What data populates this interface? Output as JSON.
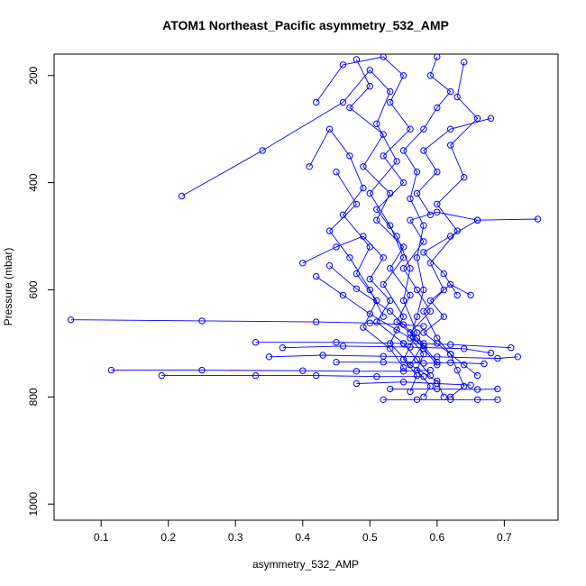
{
  "chart_data": {
    "type": "line",
    "title": "ATOM1 Northeast_Pacific asymmetry_532_AMP",
    "xlabel": "asymmetry_532_AMP",
    "ylabel": "Pressure (mbar)",
    "xlim": [
      0.03,
      0.78
    ],
    "ylim": [
      1030,
      160
    ],
    "y_reversed": true,
    "x_ticks": [
      0.1,
      0.2,
      0.3,
      0.4,
      0.5,
      0.6,
      0.7
    ],
    "y_ticks": [
      200,
      400,
      600,
      800,
      1000
    ],
    "grid": false,
    "legend": "none",
    "marker": "open-circle",
    "color": "#0000ff",
    "series": [
      {
        "points": [
          [
            0.6,
            165
          ],
          [
            0.59,
            200
          ],
          [
            0.62,
            230
          ],
          [
            0.6,
            260
          ],
          [
            0.58,
            300
          ],
          [
            0.55,
            340
          ],
          [
            0.57,
            380
          ],
          [
            0.56,
            430
          ],
          [
            0.58,
            480
          ],
          [
            0.57,
            540
          ],
          [
            0.58,
            600
          ],
          [
            0.57,
            650
          ],
          [
            0.56,
            690
          ],
          [
            0.58,
            720
          ],
          [
            0.57,
            750
          ],
          [
            0.59,
            780
          ],
          [
            0.58,
            800
          ]
        ]
      },
      {
        "points": [
          [
            0.48,
            170
          ],
          [
            0.5,
            220
          ],
          [
            0.47,
            260
          ],
          [
            0.52,
            310
          ],
          [
            0.49,
            370
          ],
          [
            0.53,
            420
          ],
          [
            0.51,
            470
          ],
          [
            0.55,
            520
          ],
          [
            0.53,
            560
          ],
          [
            0.56,
            610
          ],
          [
            0.54,
            660
          ],
          [
            0.58,
            700
          ],
          [
            0.56,
            740
          ],
          [
            0.6,
            770
          ],
          [
            0.61,
            800
          ]
        ]
      },
      {
        "points": [
          [
            0.64,
            175
          ],
          [
            0.63,
            240
          ],
          [
            0.66,
            280
          ],
          [
            0.62,
            330
          ],
          [
            0.64,
            390
          ],
          [
            0.6,
            440
          ],
          [
            0.63,
            490
          ],
          [
            0.59,
            550
          ],
          [
            0.61,
            600
          ],
          [
            0.58,
            640
          ],
          [
            0.6,
            690
          ],
          [
            0.62,
            720
          ],
          [
            0.63,
            750
          ],
          [
            0.64,
            780
          ],
          [
            0.62,
            800
          ]
        ]
      },
      {
        "points": [
          [
            0.42,
            250
          ],
          [
            0.46,
            180
          ],
          [
            0.52,
            165
          ],
          [
            0.55,
            200
          ],
          [
            0.53,
            250
          ],
          [
            0.56,
            300
          ],
          [
            0.52,
            350
          ],
          [
            0.55,
            400
          ],
          [
            0.51,
            450
          ],
          [
            0.54,
            500
          ],
          [
            0.56,
            560
          ],
          [
            0.55,
            620
          ],
          [
            0.57,
            680
          ],
          [
            0.55,
            730
          ],
          [
            0.57,
            760
          ],
          [
            0.56,
            790
          ]
        ]
      },
      {
        "points": [
          [
            0.22,
            425
          ],
          [
            0.34,
            340
          ],
          [
            0.46,
            250
          ],
          [
            0.5,
            190
          ],
          [
            0.53,
            230
          ],
          [
            0.51,
            290
          ],
          [
            0.54,
            360
          ],
          [
            0.5,
            420
          ],
          [
            0.53,
            480
          ],
          [
            0.55,
            540
          ],
          [
            0.52,
            590
          ],
          [
            0.55,
            650
          ],
          [
            0.53,
            700
          ],
          [
            0.56,
            740
          ]
        ]
      },
      {
        "points": [
          [
            0.41,
            370
          ],
          [
            0.44,
            300
          ],
          [
            0.47,
            350
          ],
          [
            0.49,
            410
          ],
          [
            0.46,
            460
          ],
          [
            0.5,
            520
          ],
          [
            0.48,
            570
          ],
          [
            0.51,
            620
          ],
          [
            0.49,
            670
          ],
          [
            0.53,
            710
          ],
          [
            0.55,
            745
          ]
        ]
      },
      {
        "points": [
          [
            0.75,
            468
          ],
          [
            0.66,
            470
          ],
          [
            0.6,
            455
          ],
          [
            0.56,
            470
          ],
          [
            0.58,
            510
          ],
          [
            0.55,
            560
          ],
          [
            0.57,
            600
          ],
          [
            0.59,
            640
          ],
          [
            0.56,
            680
          ],
          [
            0.58,
            710
          ],
          [
            0.6,
            740
          ]
        ]
      },
      {
        "points": [
          [
            0.4,
            550
          ],
          [
            0.45,
            520
          ],
          [
            0.49,
            500
          ],
          [
            0.52,
            540
          ],
          [
            0.5,
            580
          ],
          [
            0.53,
            620
          ],
          [
            0.51,
            660
          ],
          [
            0.55,
            700
          ],
          [
            0.57,
            730
          ],
          [
            0.59,
            760
          ]
        ]
      },
      {
        "points": [
          [
            0.65,
            610
          ],
          [
            0.62,
            590
          ],
          [
            0.59,
            620
          ],
          [
            0.61,
            650
          ],
          [
            0.58,
            680
          ],
          [
            0.6,
            700
          ],
          [
            0.62,
            720
          ],
          [
            0.64,
            740
          ],
          [
            0.66,
            760
          ]
        ]
      },
      {
        "points": [
          [
            0.055,
            656
          ],
          [
            0.25,
            658
          ],
          [
            0.42,
            660
          ],
          [
            0.5,
            662
          ],
          [
            0.55,
            665
          ],
          [
            0.58,
            668
          ]
        ]
      },
      {
        "points": [
          [
            0.33,
            698
          ],
          [
            0.45,
            698
          ],
          [
            0.55,
            700
          ],
          [
            0.62,
            702
          ],
          [
            0.71,
            708
          ]
        ]
      },
      {
        "points": [
          [
            0.37,
            708
          ],
          [
            0.46,
            705
          ],
          [
            0.56,
            707
          ],
          [
            0.64,
            710
          ],
          [
            0.68,
            718
          ]
        ]
      },
      {
        "points": [
          [
            0.35,
            725
          ],
          [
            0.43,
            722
          ],
          [
            0.52,
            724
          ],
          [
            0.6,
            725
          ],
          [
            0.69,
            728
          ],
          [
            0.72,
            725
          ]
        ]
      },
      {
        "points": [
          [
            0.45,
            735
          ],
          [
            0.52,
            735
          ],
          [
            0.58,
            737
          ],
          [
            0.62,
            736
          ],
          [
            0.67,
            738
          ]
        ]
      },
      {
        "points": [
          [
            0.115,
            750
          ],
          [
            0.25,
            750
          ],
          [
            0.4,
            751
          ],
          [
            0.48,
            752
          ],
          [
            0.55,
            752
          ],
          [
            0.59,
            750
          ]
        ]
      },
      {
        "points": [
          [
            0.19,
            760
          ],
          [
            0.33,
            760
          ],
          [
            0.42,
            760
          ],
          [
            0.51,
            762
          ],
          [
            0.58,
            762
          ]
        ]
      },
      {
        "points": [
          [
            0.48,
            775
          ],
          [
            0.55,
            772
          ],
          [
            0.6,
            775
          ],
          [
            0.65,
            778
          ]
        ]
      },
      {
        "points": [
          [
            0.53,
            785
          ],
          [
            0.6,
            785
          ],
          [
            0.66,
            786
          ],
          [
            0.69,
            785
          ]
        ]
      },
      {
        "points": [
          [
            0.52,
            805
          ],
          [
            0.57,
            805
          ],
          [
            0.62,
            805
          ],
          [
            0.66,
            805
          ],
          [
            0.69,
            805
          ]
        ]
      },
      {
        "points": [
          [
            0.44,
            555
          ],
          [
            0.48,
            598
          ],
          [
            0.53,
            640
          ],
          [
            0.57,
            690
          ],
          [
            0.6,
            735
          ]
        ]
      },
      {
        "points": [
          [
            0.42,
            575
          ],
          [
            0.46,
            610
          ],
          [
            0.5,
            645
          ],
          [
            0.54,
            675
          ],
          [
            0.58,
            705
          ]
        ]
      },
      {
        "points": [
          [
            0.68,
            280
          ],
          [
            0.62,
            300
          ],
          [
            0.58,
            340
          ],
          [
            0.6,
            380
          ],
          [
            0.57,
            420
          ],
          [
            0.59,
            460
          ]
        ]
      },
      {
        "points": [
          [
            0.66,
            470
          ],
          [
            0.62,
            500
          ],
          [
            0.58,
            530
          ],
          [
            0.61,
            570
          ],
          [
            0.63,
            610
          ]
        ]
      },
      {
        "points": [
          [
            0.45,
            380
          ],
          [
            0.48,
            440
          ],
          [
            0.44,
            490
          ],
          [
            0.47,
            540
          ],
          [
            0.5,
            600
          ],
          [
            0.52,
            650
          ]
        ]
      }
    ]
  }
}
